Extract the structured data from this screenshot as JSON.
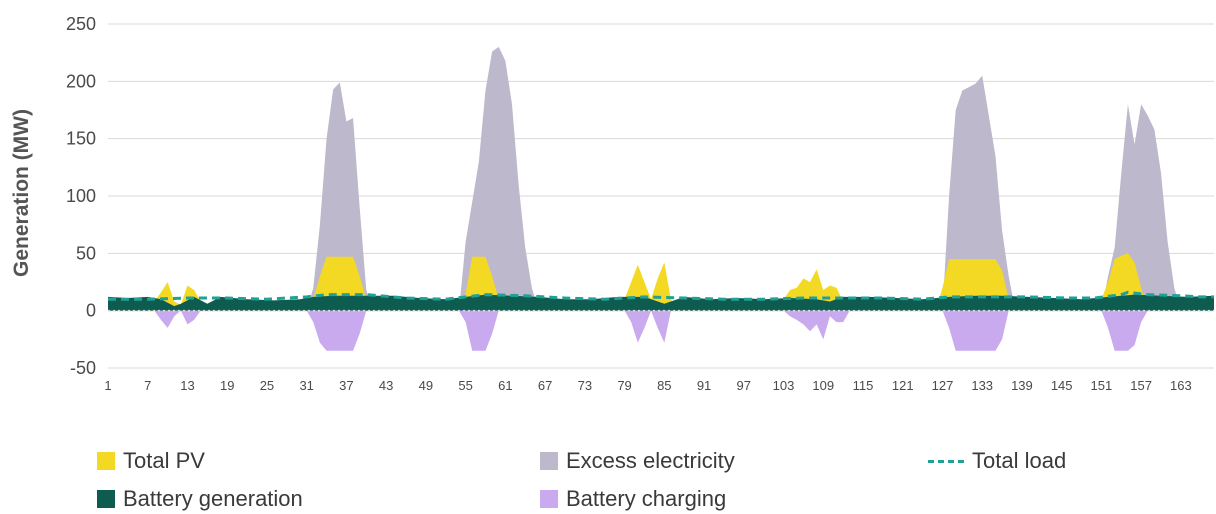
{
  "chart_data": {
    "type": "area",
    "title": "",
    "ylabel": "Generation (MW)",
    "xlabel": "",
    "ylim": [
      -50,
      250
    ],
    "yticks": [
      -50,
      0,
      50,
      100,
      150,
      200,
      250
    ],
    "xlim": [
      1,
      168
    ],
    "xticks": [
      1,
      7,
      13,
      19,
      25,
      31,
      37,
      43,
      49,
      55,
      61,
      67,
      73,
      79,
      85,
      91,
      97,
      103,
      109,
      115,
      121,
      127,
      133,
      139,
      145,
      151,
      157,
      163
    ],
    "grid": "horizontal",
    "legend_position": "bottom",
    "series": [
      {
        "name": "Excess electricity",
        "color": "#bdb8cc",
        "points": [
          [
            31,
            0
          ],
          [
            32,
            20
          ],
          [
            33,
            75
          ],
          [
            34,
            150
          ],
          [
            35,
            193
          ],
          [
            36,
            199
          ],
          [
            37,
            165
          ],
          [
            38,
            168
          ],
          [
            39,
            90
          ],
          [
            40,
            18
          ],
          [
            41,
            0
          ],
          [
            54,
            0
          ],
          [
            55,
            60
          ],
          [
            56,
            95
          ],
          [
            57,
            130
          ],
          [
            58,
            192
          ],
          [
            59,
            226
          ],
          [
            60,
            230
          ],
          [
            61,
            218
          ],
          [
            62,
            180
          ],
          [
            63,
            110
          ],
          [
            64,
            55
          ],
          [
            65,
            20
          ],
          [
            66,
            0
          ],
          [
            127,
            0
          ],
          [
            128,
            100
          ],
          [
            129,
            175
          ],
          [
            130,
            192
          ],
          [
            131,
            195
          ],
          [
            132,
            198
          ],
          [
            133,
            205
          ],
          [
            134,
            170
          ],
          [
            135,
            135
          ],
          [
            136,
            70
          ],
          [
            137,
            30
          ],
          [
            138,
            0
          ],
          [
            151,
            0
          ],
          [
            152,
            30
          ],
          [
            153,
            55
          ],
          [
            154,
            120
          ],
          [
            155,
            180
          ],
          [
            156,
            145
          ],
          [
            157,
            180
          ],
          [
            158,
            170
          ],
          [
            159,
            158
          ],
          [
            160,
            120
          ],
          [
            161,
            60
          ],
          [
            162,
            20
          ],
          [
            163,
            0
          ]
        ]
      },
      {
        "name": "Total PV",
        "color": "#f4d924",
        "points": [
          [
            7,
            0
          ],
          [
            8,
            8
          ],
          [
            9,
            16
          ],
          [
            10,
            25
          ],
          [
            11,
            8
          ],
          [
            12,
            5
          ],
          [
            13,
            22
          ],
          [
            14,
            18
          ],
          [
            15,
            8
          ],
          [
            16,
            2
          ],
          [
            17,
            0
          ],
          [
            31,
            0
          ],
          [
            32,
            10
          ],
          [
            33,
            30
          ],
          [
            34,
            47
          ],
          [
            35,
            47
          ],
          [
            36,
            47
          ],
          [
            37,
            47
          ],
          [
            38,
            47
          ],
          [
            39,
            30
          ],
          [
            40,
            10
          ],
          [
            41,
            0
          ],
          [
            54,
            0
          ],
          [
            55,
            15
          ],
          [
            56,
            47
          ],
          [
            57,
            47
          ],
          [
            58,
            47
          ],
          [
            59,
            30
          ],
          [
            60,
            10
          ],
          [
            61,
            0
          ],
          [
            78,
            0
          ],
          [
            79,
            10
          ],
          [
            80,
            25
          ],
          [
            81,
            40
          ],
          [
            82,
            25
          ],
          [
            83,
            10
          ],
          [
            84,
            28
          ],
          [
            85,
            42
          ],
          [
            86,
            10
          ],
          [
            87,
            0
          ],
          [
            102,
            0
          ],
          [
            103,
            10
          ],
          [
            104,
            18
          ],
          [
            105,
            20
          ],
          [
            106,
            28
          ],
          [
            107,
            25
          ],
          [
            108,
            36
          ],
          [
            109,
            18
          ],
          [
            110,
            22
          ],
          [
            111,
            20
          ],
          [
            112,
            8
          ],
          [
            113,
            0
          ],
          [
            126,
            0
          ],
          [
            127,
            20
          ],
          [
            128,
            45
          ],
          [
            129,
            45
          ],
          [
            130,
            45
          ],
          [
            131,
            45
          ],
          [
            132,
            45
          ],
          [
            133,
            45
          ],
          [
            134,
            45
          ],
          [
            135,
            45
          ],
          [
            136,
            35
          ],
          [
            137,
            10
          ],
          [
            138,
            0
          ],
          [
            150,
            0
          ],
          [
            151,
            10
          ],
          [
            152,
            25
          ],
          [
            153,
            45
          ],
          [
            154,
            48
          ],
          [
            155,
            50
          ],
          [
            156,
            42
          ],
          [
            157,
            20
          ],
          [
            158,
            0
          ]
        ]
      },
      {
        "name": "Battery generation",
        "color": "#0e5c50",
        "points": [
          [
            1,
            12
          ],
          [
            4,
            11
          ],
          [
            7,
            12
          ],
          [
            9,
            10
          ],
          [
            11,
            4
          ],
          [
            12,
            6
          ],
          [
            14,
            12
          ],
          [
            16,
            6
          ],
          [
            18,
            12
          ],
          [
            22,
            10
          ],
          [
            26,
            9
          ],
          [
            30,
            10
          ],
          [
            32,
            12
          ],
          [
            35,
            13
          ],
          [
            40,
            13
          ],
          [
            44,
            13
          ],
          [
            48,
            11
          ],
          [
            52,
            10
          ],
          [
            55,
            12
          ],
          [
            58,
            14
          ],
          [
            62,
            13
          ],
          [
            66,
            12
          ],
          [
            70,
            10
          ],
          [
            74,
            10
          ],
          [
            78,
            12
          ],
          [
            82,
            12
          ],
          [
            85,
            6
          ],
          [
            88,
            12
          ],
          [
            92,
            10
          ],
          [
            96,
            11
          ],
          [
            100,
            10
          ],
          [
            104,
            11
          ],
          [
            108,
            10
          ],
          [
            110,
            8
          ],
          [
            112,
            12
          ],
          [
            116,
            12
          ],
          [
            120,
            11
          ],
          [
            124,
            10
          ],
          [
            128,
            12
          ],
          [
            132,
            13
          ],
          [
            136,
            13
          ],
          [
            140,
            12
          ],
          [
            144,
            11
          ],
          [
            148,
            10
          ],
          [
            152,
            12
          ],
          [
            156,
            14
          ],
          [
            160,
            13
          ],
          [
            164,
            12
          ],
          [
            168,
            13
          ]
        ]
      },
      {
        "name": "Battery charging",
        "color": "#c9aaee",
        "points": [
          [
            8,
            0
          ],
          [
            9,
            -8
          ],
          [
            10,
            -15
          ],
          [
            11,
            -5
          ],
          [
            12,
            0
          ],
          [
            13,
            -12
          ],
          [
            14,
            -8
          ],
          [
            15,
            0
          ],
          [
            31,
            0
          ],
          [
            32,
            -10
          ],
          [
            33,
            -28
          ],
          [
            34,
            -35
          ],
          [
            35,
            -35
          ],
          [
            36,
            -35
          ],
          [
            37,
            -35
          ],
          [
            38,
            -35
          ],
          [
            39,
            -20
          ],
          [
            40,
            0
          ],
          [
            54,
            0
          ],
          [
            55,
            -10
          ],
          [
            56,
            -35
          ],
          [
            57,
            -35
          ],
          [
            58,
            -35
          ],
          [
            59,
            -20
          ],
          [
            60,
            0
          ],
          [
            79,
            0
          ],
          [
            80,
            -10
          ],
          [
            81,
            -28
          ],
          [
            82,
            -15
          ],
          [
            83,
            0
          ],
          [
            84,
            -15
          ],
          [
            85,
            -28
          ],
          [
            86,
            0
          ],
          [
            103,
            0
          ],
          [
            104,
            -5
          ],
          [
            105,
            -8
          ],
          [
            106,
            -12
          ],
          [
            107,
            -18
          ],
          [
            108,
            -12
          ],
          [
            109,
            -25
          ],
          [
            110,
            -5
          ],
          [
            111,
            -10
          ],
          [
            112,
            -10
          ],
          [
            113,
            0
          ],
          [
            127,
            0
          ],
          [
            128,
            -15
          ],
          [
            129,
            -35
          ],
          [
            130,
            -35
          ],
          [
            131,
            -35
          ],
          [
            132,
            -35
          ],
          [
            133,
            -35
          ],
          [
            134,
            -35
          ],
          [
            135,
            -35
          ],
          [
            136,
            -25
          ],
          [
            137,
            0
          ],
          [
            151,
            0
          ],
          [
            152,
            -15
          ],
          [
            153,
            -35
          ],
          [
            154,
            -35
          ],
          [
            155,
            -35
          ],
          [
            156,
            -30
          ],
          [
            157,
            -10
          ],
          [
            158,
            0
          ]
        ]
      },
      {
        "name": "Total load",
        "color": "#1fa295",
        "style": "dashed",
        "points": [
          [
            1,
            10
          ],
          [
            7,
            10
          ],
          [
            13,
            11
          ],
          [
            19,
            11
          ],
          [
            25,
            10
          ],
          [
            31,
            12
          ],
          [
            34,
            14
          ],
          [
            40,
            14
          ],
          [
            46,
            11
          ],
          [
            52,
            10
          ],
          [
            58,
            14
          ],
          [
            64,
            13
          ],
          [
            70,
            11
          ],
          [
            76,
            10
          ],
          [
            82,
            12
          ],
          [
            88,
            11
          ],
          [
            94,
            10
          ],
          [
            100,
            10
          ],
          [
            106,
            11
          ],
          [
            112,
            11
          ],
          [
            118,
            11
          ],
          [
            124,
            10
          ],
          [
            128,
            12
          ],
          [
            134,
            12
          ],
          [
            140,
            12
          ],
          [
            146,
            11
          ],
          [
            150,
            11
          ],
          [
            154,
            14
          ],
          [
            155,
            16
          ],
          [
            158,
            14
          ],
          [
            163,
            13
          ],
          [
            166,
            12
          ],
          [
            168,
            12
          ]
        ]
      }
    ]
  },
  "legend": {
    "total_pv": "Total PV",
    "excess": "Excess electricity",
    "total_load": "Total load",
    "battery_generation": "Battery generation",
    "battery_charging": "Battery charging"
  },
  "colors": {
    "total_pv": "#f4d924",
    "excess": "#bdb8cc",
    "total_load": "#1fa295",
    "battery_generation": "#0e5c50",
    "battery_charging": "#c9aaee",
    "grid": "#d9d9d9"
  }
}
